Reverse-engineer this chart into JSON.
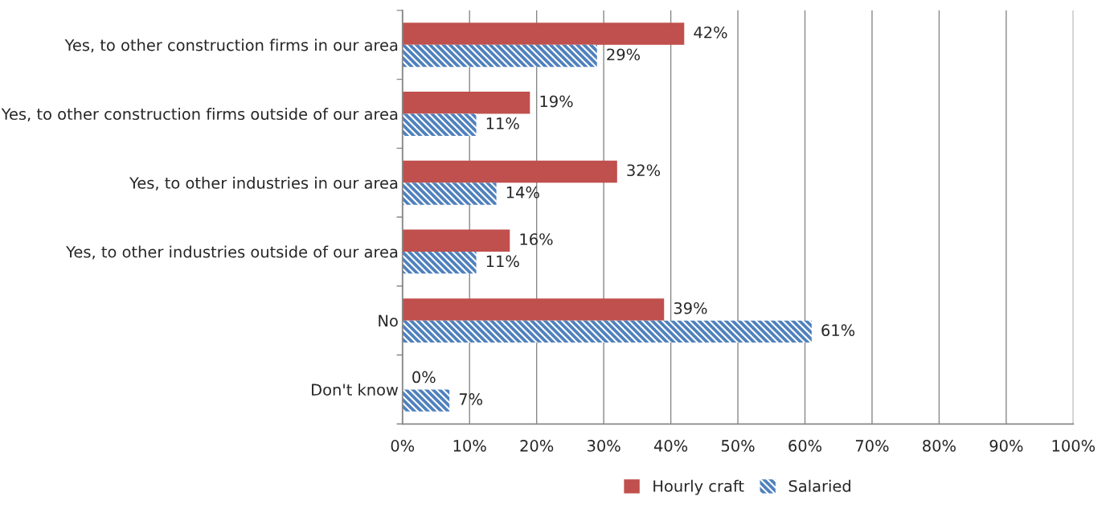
{
  "chart_data": {
    "type": "bar",
    "orientation": "horizontal",
    "categories": [
      "Yes, to other construction firms in our area",
      "Yes, to other construction firms outside of our area",
      "Yes, to other industries in our area",
      "Yes, to other industries outside of our area",
      "No",
      "Don't know"
    ],
    "series": [
      {
        "name": "Hourly craft",
        "color": "#c0504d",
        "values": [
          42,
          19,
          32,
          16,
          39,
          0
        ],
        "value_labels": [
          "42%",
          "19%",
          "32%",
          "16%",
          "39%",
          "0%"
        ]
      },
      {
        "name": "Salaried",
        "color": "#4f81bd",
        "values": [
          29,
          11,
          14,
          11,
          61,
          7
        ],
        "value_labels": [
          "29%",
          "11%",
          "14%",
          "11%",
          "61%",
          "7%"
        ]
      }
    ],
    "xlim": [
      0,
      100
    ],
    "xticks": [
      {
        "value": 0,
        "label": "0%"
      },
      {
        "value": 10,
        "label": "10%"
      },
      {
        "value": 20,
        "label": "20%"
      },
      {
        "value": 30,
        "label": "30%"
      },
      {
        "value": 40,
        "label": "40%"
      },
      {
        "value": 50,
        "label": "50%"
      },
      {
        "value": 60,
        "label": "60%"
      },
      {
        "value": 70,
        "label": "70%"
      },
      {
        "value": 80,
        "label": "80%"
      },
      {
        "value": 90,
        "label": "90%"
      },
      {
        "value": 100,
        "label": "100%"
      }
    ],
    "grid": "x",
    "legend": "bottom"
  }
}
